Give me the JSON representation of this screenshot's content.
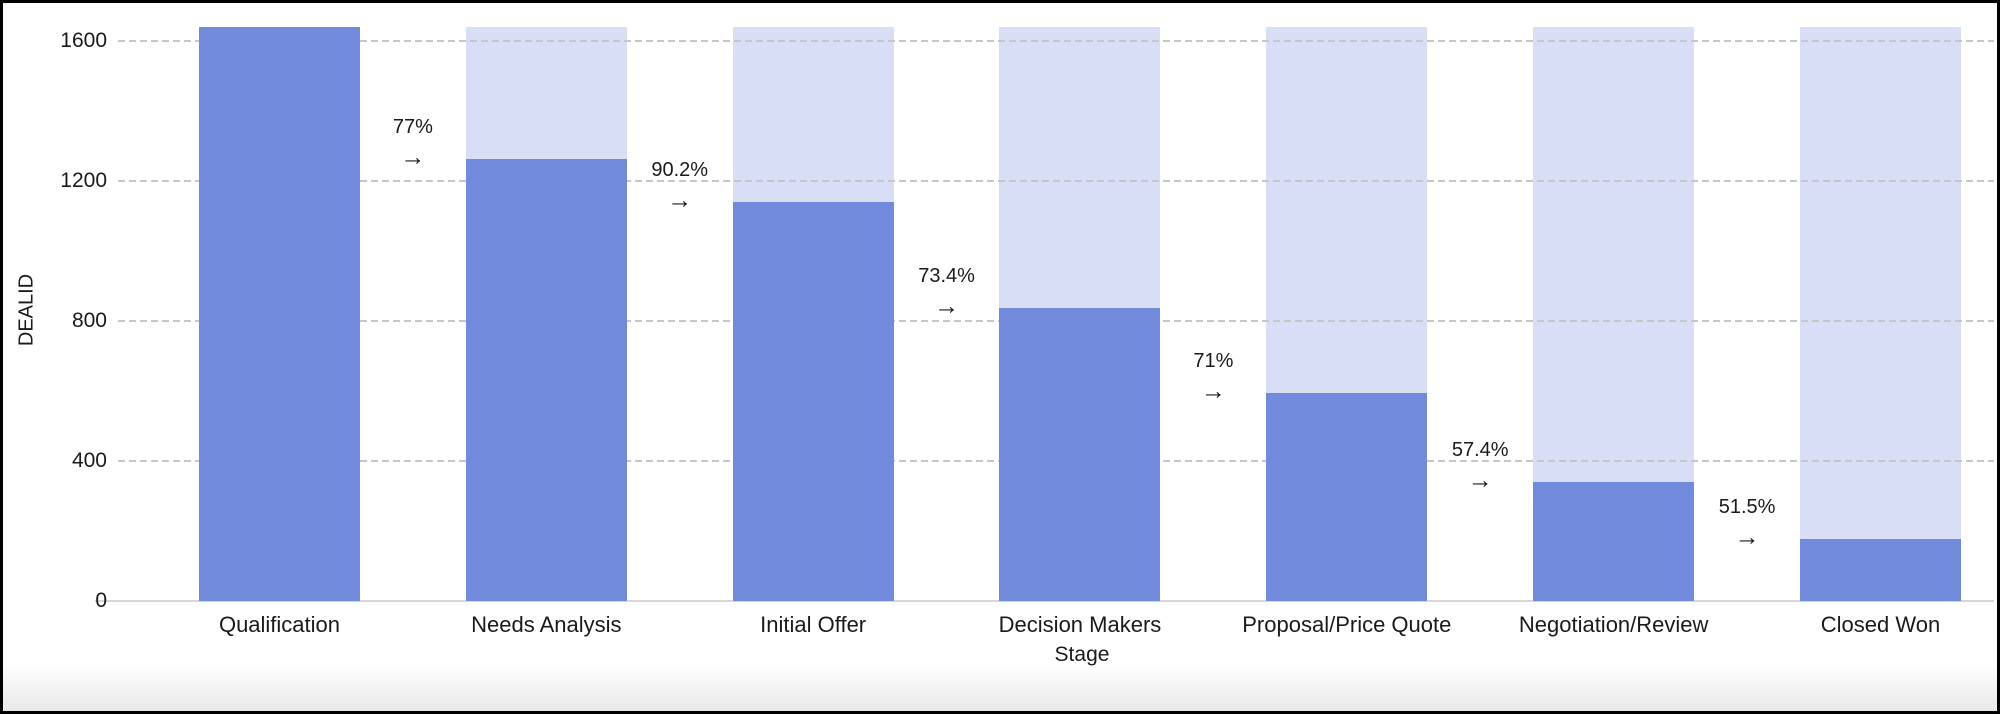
{
  "chart_data": {
    "type": "bar",
    "variant": "funnel",
    "title": "",
    "xlabel": "Stage",
    "ylabel": "DEALID",
    "categories": [
      "Qualification",
      "Needs Analysis",
      "Initial Offer",
      "Decision Makers",
      "Proposal/Price Quote",
      "Negotiation/Review",
      "Closed Won"
    ],
    "values": [
      1640,
      1263,
      1139,
      836,
      594,
      341,
      176
    ],
    "conversion_rates": [
      "77%",
      "90.2%",
      "73.4%",
      "71%",
      "57.4%",
      "51.5%"
    ],
    "arrow_icon": "→",
    "y_ticks": [
      0,
      400,
      800,
      1200,
      1600
    ],
    "ylim": [
      0,
      1644
    ],
    "legend": "none",
    "grid": "horizontal-dashed",
    "colors": {
      "bar": "#728ADC",
      "bar_background": "#D7DEF6",
      "gridline": "#C6C6C6",
      "baseline": "#D7D7D7",
      "text": "#1A1A1A",
      "frame_border": "#000000",
      "background": "#FFFFFF"
    }
  }
}
